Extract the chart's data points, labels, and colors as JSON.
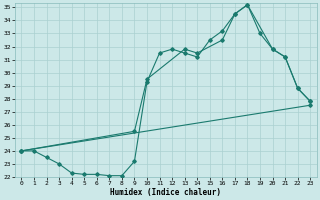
{
  "xlabel": "Humidex (Indice chaleur)",
  "line_color": "#1a7a6e",
  "bg_color": "#cce8e8",
  "grid_color": "#aad0d0",
  "xlim": [
    -0.5,
    23.5
  ],
  "ylim": [
    22,
    35.3
  ],
  "xticks": [
    0,
    1,
    2,
    3,
    4,
    5,
    6,
    7,
    8,
    9,
    10,
    11,
    12,
    13,
    14,
    15,
    16,
    17,
    18,
    19,
    20,
    21,
    22,
    23
  ],
  "yticks": [
    22,
    23,
    24,
    25,
    26,
    27,
    28,
    29,
    30,
    31,
    32,
    33,
    34,
    35
  ],
  "line1_x": [
    0,
    1,
    2,
    3,
    4,
    5,
    6,
    7,
    8,
    9,
    10,
    11,
    12,
    13,
    14,
    15,
    16,
    17,
    18,
    19,
    20,
    21,
    22,
    23
  ],
  "line1_y": [
    24.0,
    24.0,
    23.5,
    23.0,
    22.3,
    22.2,
    22.2,
    22.1,
    22.1,
    23.2,
    29.3,
    31.5,
    31.8,
    31.5,
    31.2,
    32.5,
    33.2,
    34.5,
    35.2,
    33.0,
    31.8,
    31.2,
    28.8,
    27.8
  ],
  "line2_x": [
    0,
    9,
    10,
    13,
    14,
    16,
    17,
    18,
    20,
    21,
    22,
    23
  ],
  "line2_y": [
    24.0,
    25.5,
    29.5,
    31.8,
    31.5,
    32.5,
    34.5,
    35.2,
    31.8,
    31.2,
    28.8,
    27.8
  ],
  "line3_x": [
    0,
    23
  ],
  "line3_y": [
    24.0,
    27.5
  ]
}
